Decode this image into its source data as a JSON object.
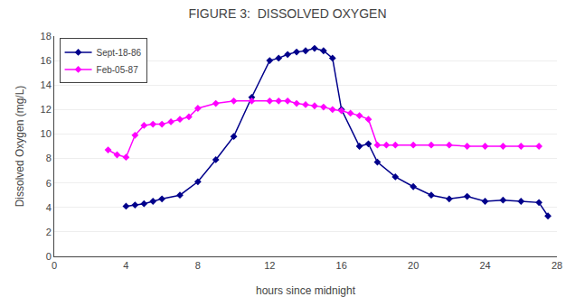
{
  "chart_data": {
    "type": "line",
    "title": "FIGURE 3:  DISSOLVED OXYGEN",
    "xlabel": "hours since midnight",
    "ylabel": "Dissolved Oxygen (mg/L)",
    "xlim": [
      0,
      28
    ],
    "ylim": [
      0,
      18
    ],
    "xticks": [
      0,
      4,
      8,
      12,
      16,
      20,
      24,
      28
    ],
    "yticks": [
      0,
      2,
      4,
      6,
      8,
      10,
      12,
      14,
      16,
      18
    ],
    "grid": "y",
    "legend": "upper left",
    "series": [
      {
        "name": "Sept-18-86",
        "color": "#00008B",
        "marker": "diamond",
        "x": [
          4,
          4.5,
          5,
          5.5,
          6,
          7,
          8,
          9,
          10,
          11,
          12,
          12.5,
          13,
          13.5,
          14,
          14.5,
          15,
          15.5,
          16,
          17,
          17.5,
          18,
          19,
          20,
          21,
          22,
          23,
          24,
          25,
          26,
          27,
          27.5
        ],
        "values": [
          4.1,
          4.2,
          4.3,
          4.5,
          4.7,
          5.0,
          6.1,
          7.9,
          9.8,
          13.0,
          16.0,
          16.2,
          16.5,
          16.7,
          16.8,
          17.0,
          16.8,
          16.2,
          12.0,
          9.0,
          9.2,
          7.7,
          6.5,
          5.7,
          5.0,
          4.7,
          4.9,
          4.5,
          4.6,
          4.5,
          4.4,
          3.3
        ]
      },
      {
        "name": "Feb-05-87",
        "color": "#FF00FF",
        "marker": "diamond",
        "x": [
          3,
          3.5,
          4,
          4.5,
          5,
          5.5,
          6,
          6.5,
          7,
          7.5,
          8,
          9,
          10,
          11,
          12,
          12.5,
          13,
          13.5,
          14,
          14.5,
          15,
          15.5,
          16,
          16.5,
          17,
          17.5,
          18,
          18.5,
          19,
          20,
          21,
          22,
          23,
          24,
          25,
          26,
          27
        ],
        "values": [
          8.7,
          8.3,
          8.1,
          9.9,
          10.7,
          10.8,
          10.8,
          11.0,
          11.2,
          11.4,
          12.1,
          12.5,
          12.7,
          12.7,
          12.7,
          12.7,
          12.7,
          12.5,
          12.4,
          12.3,
          12.2,
          12.0,
          11.9,
          11.7,
          11.5,
          11.2,
          9.1,
          9.1,
          9.1,
          9.1,
          9.1,
          9.1,
          9.0,
          9.0,
          9.0,
          9.0,
          9.0
        ]
      }
    ]
  }
}
